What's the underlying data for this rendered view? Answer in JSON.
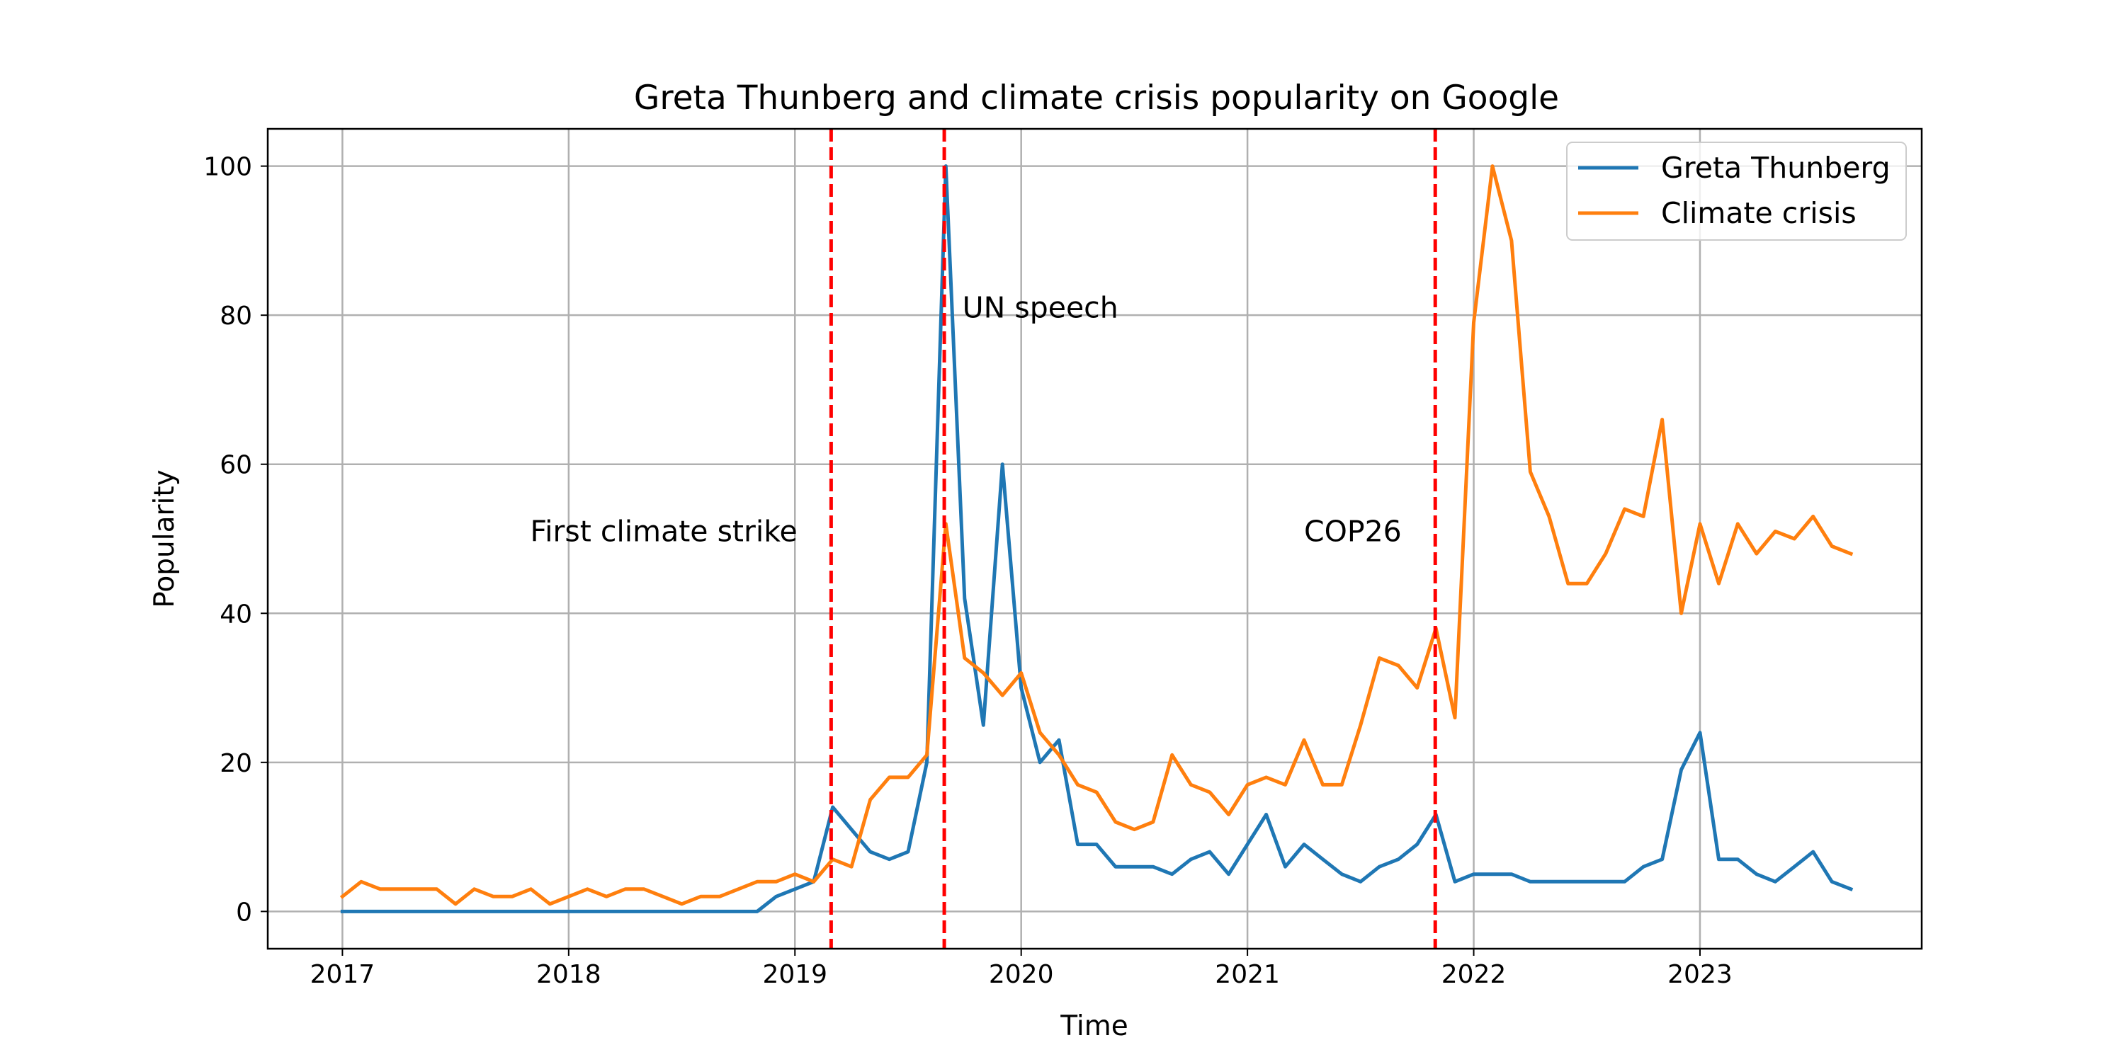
{
  "chart_data": {
    "type": "line",
    "title": "Greta Thunberg and climate crisis popularity on Google",
    "xlabel": "Time",
    "ylabel": "Popularity",
    "xlim": [
      2016.67,
      2023.98
    ],
    "ylim": [
      -5,
      105
    ],
    "x_ticks": [
      2017,
      2018,
      2019,
      2020,
      2021,
      2022,
      2023
    ],
    "y_ticks": [
      0,
      20,
      40,
      60,
      80,
      100
    ],
    "grid": true,
    "legend_position": "upper right",
    "x": [
      2017.0,
      2017.083,
      2017.167,
      2017.25,
      2017.333,
      2017.417,
      2017.5,
      2017.583,
      2017.667,
      2017.75,
      2017.833,
      2017.917,
      2018.0,
      2018.083,
      2018.167,
      2018.25,
      2018.333,
      2018.417,
      2018.5,
      2018.583,
      2018.667,
      2018.75,
      2018.833,
      2018.917,
      2019.0,
      2019.083,
      2019.167,
      2019.25,
      2019.333,
      2019.417,
      2019.5,
      2019.583,
      2019.667,
      2019.75,
      2019.833,
      2019.917,
      2020.0,
      2020.083,
      2020.167,
      2020.25,
      2020.333,
      2020.417,
      2020.5,
      2020.583,
      2020.667,
      2020.75,
      2020.833,
      2020.917,
      2021.0,
      2021.083,
      2021.167,
      2021.25,
      2021.333,
      2021.417,
      2021.5,
      2021.583,
      2021.667,
      2021.75,
      2021.833,
      2021.917,
      2022.0,
      2022.083,
      2022.167,
      2022.25,
      2022.333,
      2022.417,
      2022.5,
      2022.583,
      2022.667,
      2022.75,
      2022.833,
      2022.917,
      2023.0,
      2023.083,
      2023.167,
      2023.25,
      2023.333,
      2023.417,
      2023.5,
      2023.583,
      2023.667
    ],
    "series": [
      {
        "name": "Greta Thunberg",
        "color": "#1f77b4",
        "values": [
          0,
          0,
          0,
          0,
          0,
          0,
          0,
          0,
          0,
          0,
          0,
          0,
          0,
          0,
          0,
          0,
          0,
          0,
          0,
          0,
          0,
          0,
          0,
          2,
          3,
          4,
          14,
          11,
          8,
          7,
          8,
          20,
          100,
          42,
          25,
          60,
          30,
          20,
          23,
          9,
          9,
          6,
          6,
          6,
          5,
          7,
          8,
          5,
          9,
          13,
          6,
          9,
          7,
          5,
          4,
          6,
          7,
          9,
          13,
          4,
          5,
          5,
          5,
          4,
          4,
          4,
          4,
          4,
          4,
          6,
          7,
          19,
          24,
          7,
          7,
          5,
          4,
          6,
          8,
          4,
          3
        ]
      },
      {
        "name": "Climate crisis",
        "color": "#ff7f0e",
        "values": [
          2,
          4,
          3,
          3,
          3,
          3,
          1,
          3,
          2,
          2,
          3,
          1,
          2,
          3,
          2,
          3,
          3,
          2,
          1,
          2,
          2,
          3,
          4,
          4,
          5,
          4,
          7,
          6,
          15,
          18,
          18,
          21,
          52,
          34,
          32,
          29,
          32,
          24,
          21,
          17,
          16,
          12,
          11,
          12,
          21,
          17,
          16,
          13,
          17,
          18,
          17,
          23,
          17,
          17,
          25,
          34,
          33,
          30,
          38,
          26,
          79,
          100,
          90,
          59,
          53,
          44,
          44,
          48,
          54,
          53,
          66,
          40,
          52,
          44,
          52,
          48,
          51,
          50,
          53,
          49,
          48
        ]
      }
    ],
    "events": [
      {
        "x": 2019.16,
        "label": "First climate strike",
        "label_x": 2017.83,
        "label_y": 51
      },
      {
        "x": 2019.66,
        "label": "UN speech",
        "label_x": 2019.74,
        "label_y": 81
      },
      {
        "x": 2021.83,
        "label": "COP26",
        "label_x": 2021.25,
        "label_y": 51
      }
    ],
    "event_line_color": "#ff0000"
  }
}
